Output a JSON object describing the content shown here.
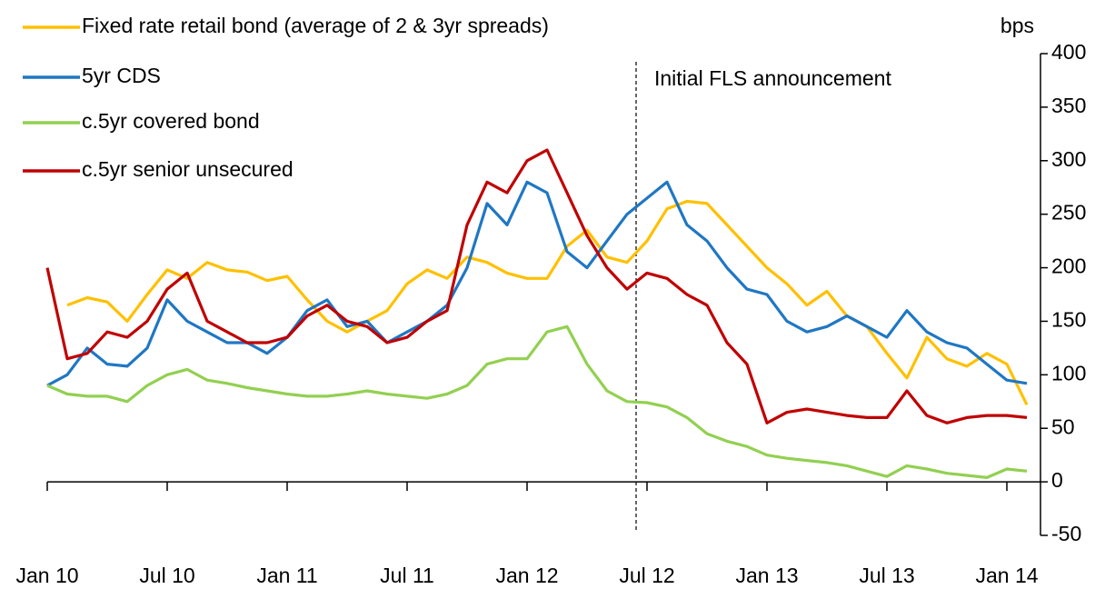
{
  "chart_data": {
    "type": "line",
    "x": [
      "2010-01",
      "2010-02",
      "2010-03",
      "2010-04",
      "2010-05",
      "2010-06",
      "2010-07",
      "2010-08",
      "2010-09",
      "2010-10",
      "2010-11",
      "2010-12",
      "2011-01",
      "2011-02",
      "2011-03",
      "2011-04",
      "2011-05",
      "2011-06",
      "2011-07",
      "2011-08",
      "2011-09",
      "2011-10",
      "2011-11",
      "2011-12",
      "2012-01",
      "2012-02",
      "2012-03",
      "2012-04",
      "2012-05",
      "2012-06",
      "2012-07",
      "2012-08",
      "2012-09",
      "2012-10",
      "2012-11",
      "2012-12",
      "2013-01",
      "2013-02",
      "2013-03",
      "2013-04",
      "2013-05",
      "2013-06",
      "2013-07",
      "2013-08",
      "2013-09",
      "2013-10",
      "2013-11",
      "2013-12",
      "2014-01",
      "2014-02"
    ],
    "xlim": [
      "2010-01",
      "2014-03"
    ],
    "xticks": [
      {
        "value": "2010-01",
        "label": "Jan 10"
      },
      {
        "value": "2010-07",
        "label": "Jul 10"
      },
      {
        "value": "2011-01",
        "label": "Jan 11"
      },
      {
        "value": "2011-07",
        "label": "Jul 11"
      },
      {
        "value": "2012-01",
        "label": "Jan 12"
      },
      {
        "value": "2012-07",
        "label": "Jul 12"
      },
      {
        "value": "2013-01",
        "label": "Jan 13"
      },
      {
        "value": "2013-07",
        "label": "Jul 13"
      },
      {
        "value": "2014-01",
        "label": "Jan 14"
      }
    ],
    "ylim": [
      -50,
      400
    ],
    "yticks": [
      -50,
      0,
      50,
      100,
      150,
      200,
      250,
      300,
      350,
      400
    ],
    "y_axis_label": "bps",
    "annotation": "Initial FLS announcement",
    "legend": "upper left",
    "series": [
      {
        "name": "Fixed rate retail bond (average of 2 & 3yr spreads)",
        "color": "#FFC000",
        "values": [
          null,
          165,
          172,
          168,
          150,
          175,
          198,
          190,
          205,
          198,
          196,
          188,
          192,
          170,
          150,
          140,
          150,
          160,
          185,
          198,
          190,
          210,
          205,
          195,
          190,
          190,
          220,
          235,
          210,
          205,
          225,
          255,
          262,
          260,
          240,
          220,
          200,
          185,
          165,
          178,
          155,
          145,
          120,
          97,
          135,
          115,
          108,
          120,
          110,
          72
        ]
      },
      {
        "name": "5yr CDS",
        "color": "#1F77C4",
        "values": [
          90,
          100,
          125,
          110,
          108,
          125,
          170,
          150,
          140,
          130,
          130,
          120,
          135,
          160,
          170,
          145,
          150,
          130,
          140,
          150,
          165,
          200,
          260,
          240,
          280,
          270,
          215,
          200,
          225,
          250,
          265,
          280,
          240,
          225,
          200,
          180,
          175,
          150,
          140,
          145,
          155,
          145,
          135,
          160,
          140,
          130,
          125,
          110,
          95,
          92
        ]
      },
      {
        "name": "c.5yr covered bond",
        "color": "#92D050",
        "values": [
          90,
          82,
          80,
          80,
          75,
          90,
          100,
          105,
          95,
          92,
          88,
          85,
          82,
          80,
          80,
          82,
          85,
          82,
          80,
          78,
          82,
          90,
          110,
          115,
          115,
          140,
          145,
          110,
          85,
          75,
          74,
          70,
          60,
          45,
          38,
          33,
          25,
          22,
          20,
          18,
          15,
          10,
          5,
          15,
          12,
          8,
          6,
          4,
          12,
          10
        ]
      },
      {
        "name": "c.5yr senior unsecured",
        "color": "#C00000",
        "values": [
          200,
          115,
          120,
          140,
          135,
          150,
          180,
          195,
          150,
          140,
          130,
          130,
          135,
          155,
          165,
          150,
          145,
          130,
          135,
          150,
          160,
          240,
          280,
          270,
          300,
          310,
          270,
          230,
          200,
          180,
          195,
          190,
          175,
          165,
          130,
          110,
          55,
          65,
          68,
          65,
          62,
          60,
          60,
          85,
          62,
          55,
          60,
          62,
          62,
          60
        ]
      }
    ]
  }
}
